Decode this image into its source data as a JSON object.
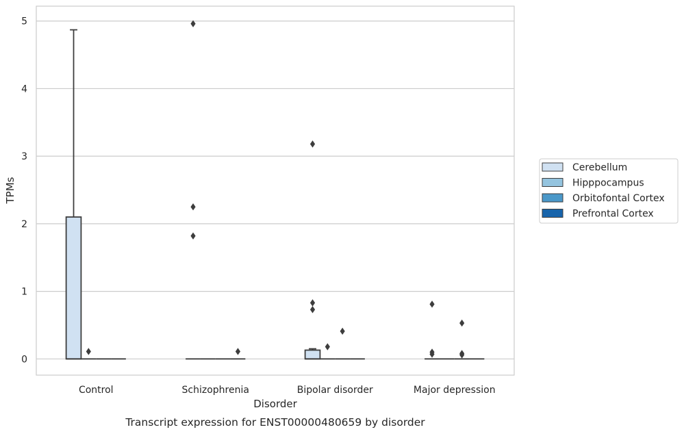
{
  "chart_data": {
    "type": "box",
    "title": "Transcript expression for ENST00000480659 by disorder",
    "xlabel": "Disorder",
    "ylabel": "TPMs",
    "ylim": [
      -0.24,
      5.22
    ],
    "yticks": [
      0,
      1,
      2,
      3,
      4,
      5
    ],
    "grid": true,
    "legend_position": "right",
    "categories": [
      "Control",
      "Schizophrenia",
      "Bipolar disorder",
      "Major depression"
    ],
    "series": [
      {
        "name": "Cerebellum",
        "color": "#d0e1f2",
        "boxes": [
          {
            "q1": 0,
            "median": 0,
            "q3": 2.1,
            "whisker_low": 0,
            "whisker_high": 4.87,
            "outliers": []
          },
          {
            "q1": 0,
            "median": 0,
            "q3": 0,
            "whisker_low": 0,
            "whisker_high": 0,
            "outliers": [
              4.96,
              2.25,
              1.82
            ]
          },
          {
            "q1": 0,
            "median": 0,
            "q3": 0.13,
            "whisker_low": 0,
            "whisker_high": 0.15,
            "outliers": [
              3.18,
              0.83,
              0.73
            ]
          },
          {
            "q1": 0,
            "median": 0,
            "q3": 0,
            "whisker_low": 0,
            "whisker_high": 0,
            "outliers": [
              0.81,
              0.1,
              0.07
            ]
          }
        ]
      },
      {
        "name": "Hipppocampus",
        "color": "#94c4df",
        "boxes": [
          {
            "q1": 0,
            "median": 0,
            "q3": 0,
            "whisker_low": 0,
            "whisker_high": 0,
            "outliers": [
              0.11
            ]
          },
          {
            "q1": 0,
            "median": 0,
            "q3": 0,
            "whisker_low": 0,
            "whisker_high": 0,
            "outliers": []
          },
          {
            "q1": 0,
            "median": 0,
            "q3": 0,
            "whisker_low": 0,
            "whisker_high": 0,
            "outliers": [
              0.18
            ]
          },
          {
            "q1": 0,
            "median": 0,
            "q3": 0,
            "whisker_low": 0,
            "whisker_high": 0,
            "outliers": []
          }
        ]
      },
      {
        "name": "Orbitofontal Cortex",
        "color": "#4a98c9",
        "boxes": [
          {
            "q1": 0,
            "median": 0,
            "q3": 0,
            "whisker_low": 0,
            "whisker_high": 0,
            "outliers": []
          },
          {
            "q1": 0,
            "median": 0,
            "q3": 0,
            "whisker_low": 0,
            "whisker_high": 0,
            "outliers": []
          },
          {
            "q1": 0,
            "median": 0,
            "q3": 0,
            "whisker_low": 0,
            "whisker_high": 0,
            "outliers": [
              0.41
            ]
          },
          {
            "q1": 0,
            "median": 0,
            "q3": 0,
            "whisker_low": 0,
            "whisker_high": 0,
            "outliers": [
              0.53,
              0.08,
              0.06
            ]
          }
        ]
      },
      {
        "name": "Prefrontal Cortex",
        "color": "#1764ab",
        "boxes": [
          {
            "q1": 0,
            "median": 0,
            "q3": 0,
            "whisker_low": 0,
            "whisker_high": 0,
            "outliers": []
          },
          {
            "q1": 0,
            "median": 0,
            "q3": 0,
            "whisker_low": 0,
            "whisker_high": 0,
            "outliers": [
              0.11
            ]
          },
          {
            "q1": 0,
            "median": 0,
            "q3": 0,
            "whisker_low": 0,
            "whisker_high": 0,
            "outliers": []
          },
          {
            "q1": 0,
            "median": 0,
            "q3": 0,
            "whisker_low": 0,
            "whisker_high": 0,
            "outliers": []
          }
        ]
      }
    ]
  }
}
